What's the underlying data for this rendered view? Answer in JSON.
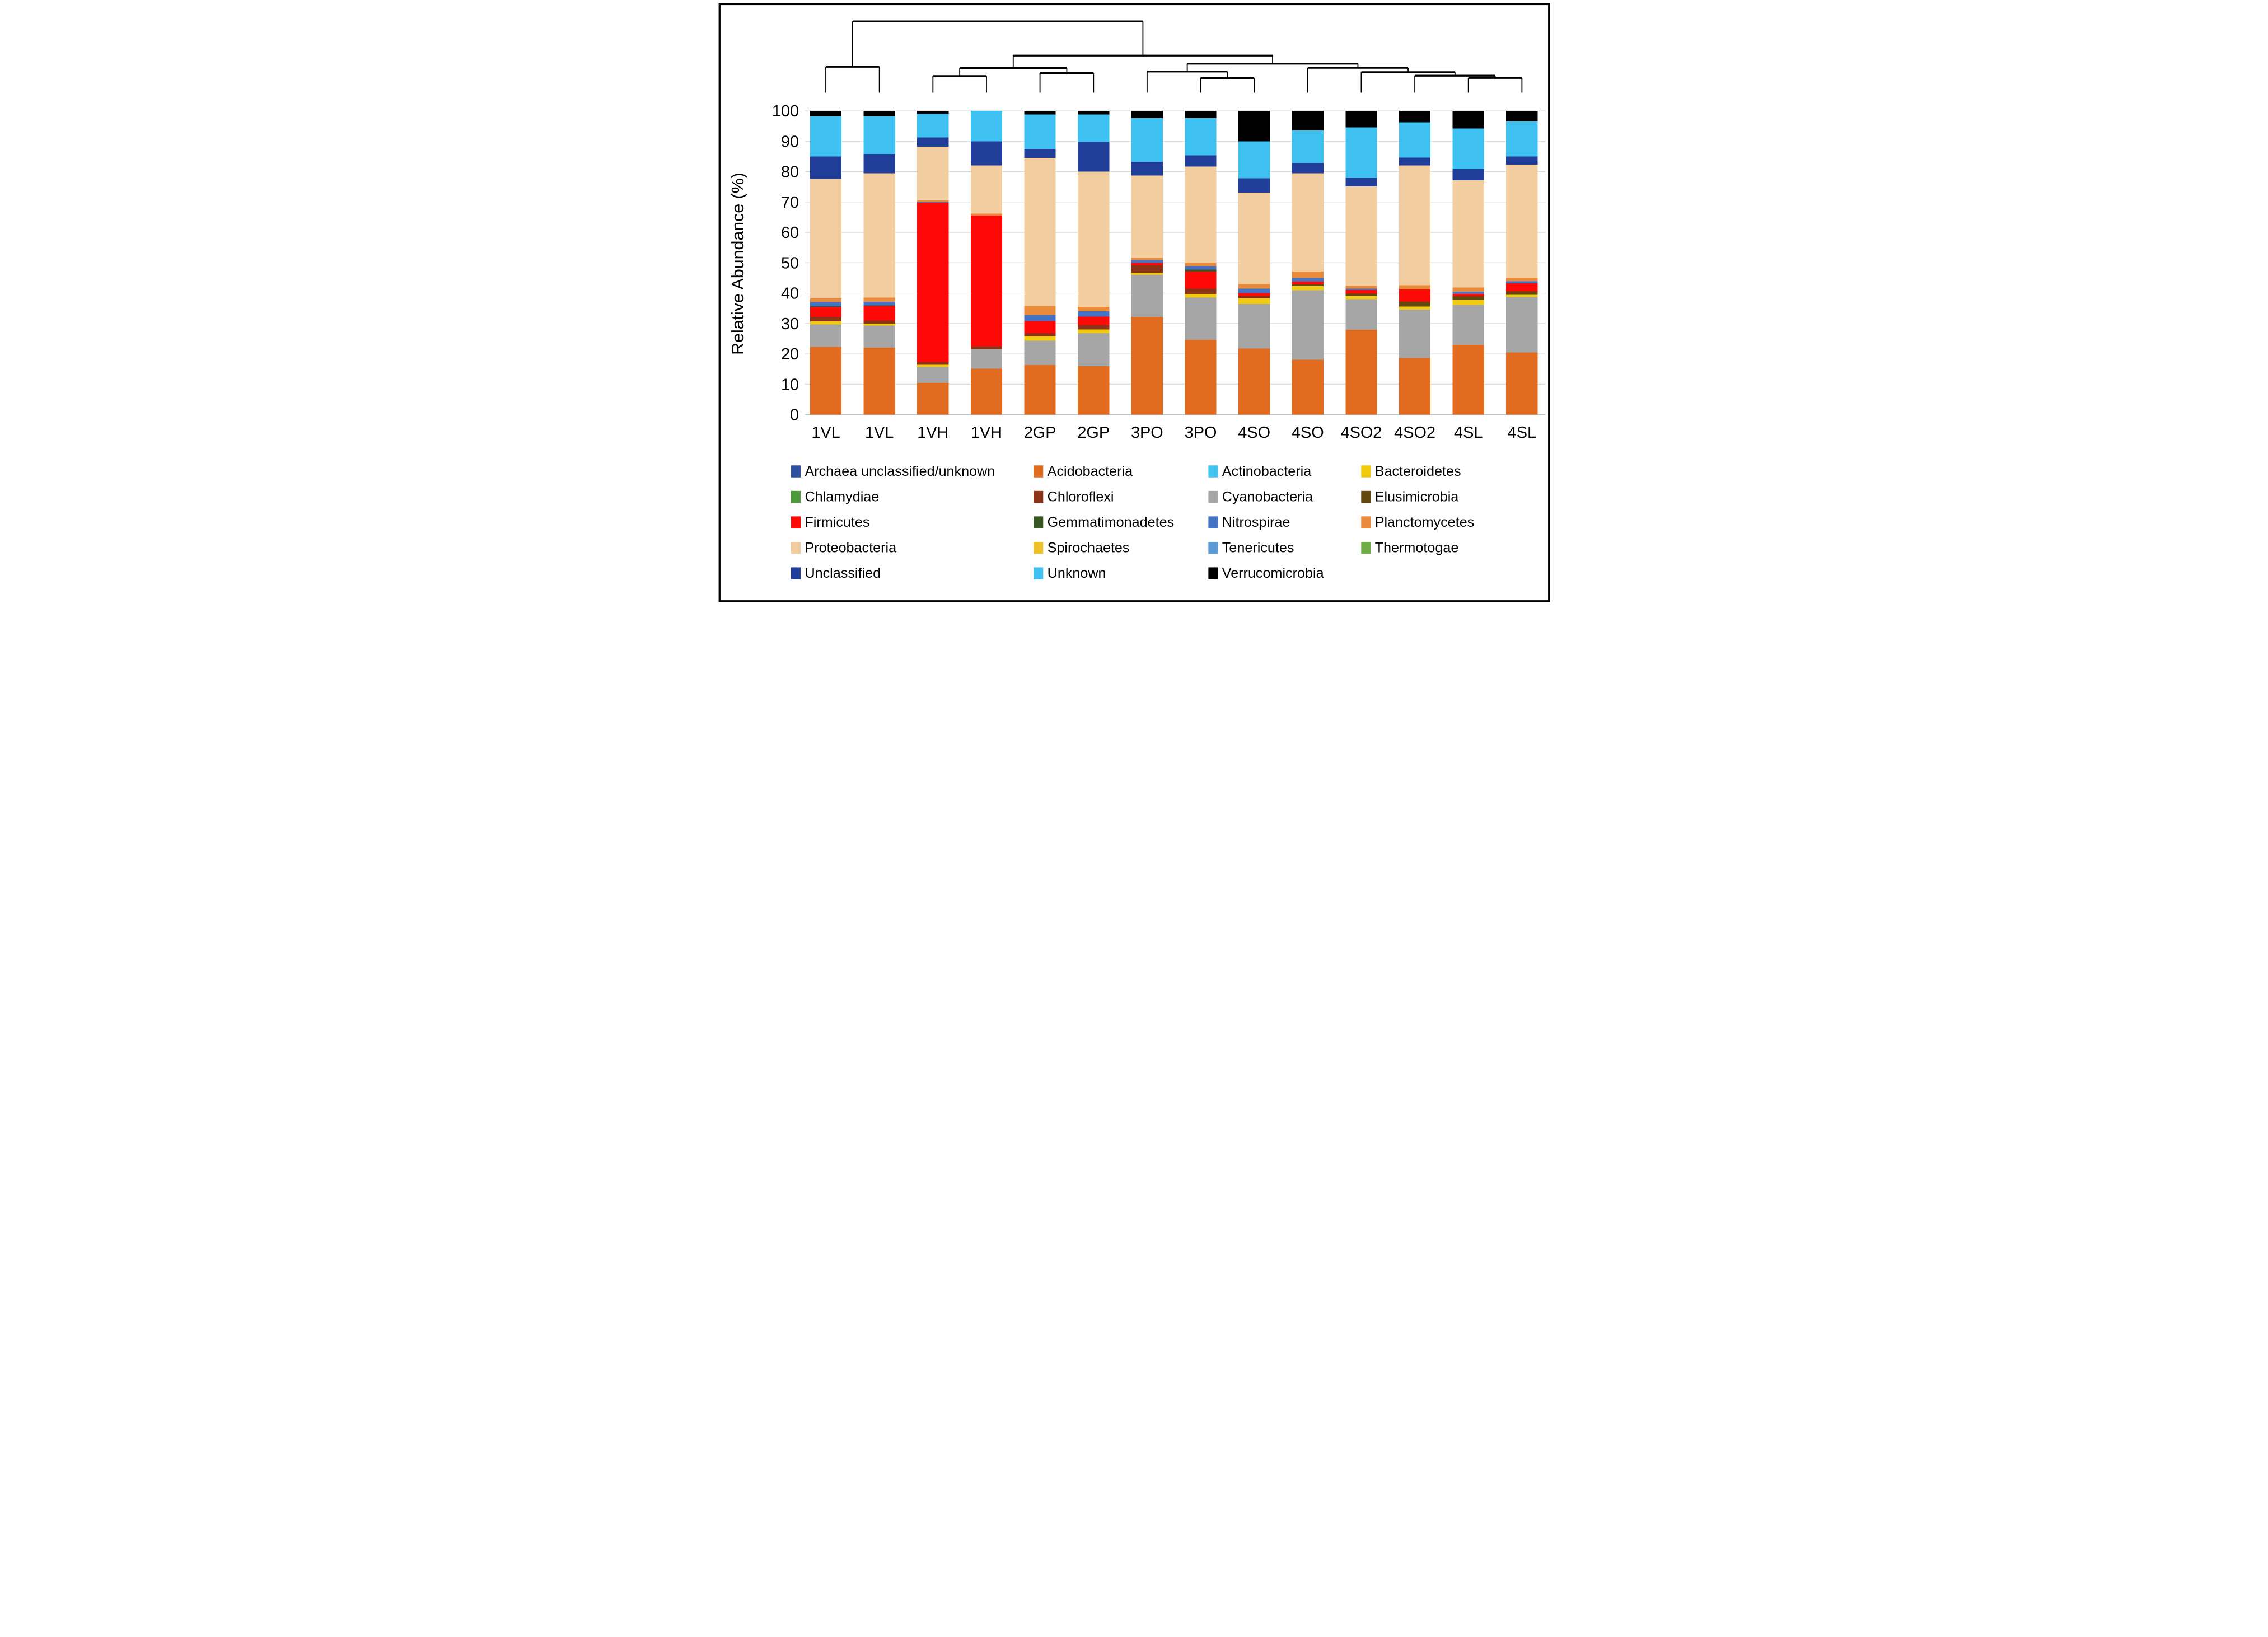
{
  "chart_data": {
    "type": "bar",
    "subtype": "stacked-percent-with-dendrogram",
    "title": "",
    "xlabel": "",
    "ylabel": "Relative Abundance (%)",
    "ylim": [
      0,
      100
    ],
    "grid": true,
    "legend_position": "bottom",
    "y_ticks": [
      0,
      10,
      20,
      30,
      40,
      50,
      60,
      70,
      80,
      90,
      100
    ],
    "categories": [
      "1VL",
      "1VL",
      "1VH",
      "1VH",
      "2GP",
      "2GP",
      "3PO",
      "3PO",
      "4SO",
      "4SO",
      "4SO2",
      "4SO2",
      "4SL",
      "4SL"
    ],
    "series": [
      {
        "name": "Archaea unclassified/unknown",
        "color": "#2E4E9E",
        "values": [
          0,
          0,
          0,
          0,
          0,
          0,
          0,
          0,
          0,
          0,
          0,
          0,
          0,
          0
        ]
      },
      {
        "name": "Acidobacteria",
        "color": "#E16C20",
        "values": [
          22.3,
          22.0,
          10.4,
          15.1,
          16.3,
          16.0,
          32.2,
          24.6,
          21.8,
          18.1,
          27.9,
          18.6,
          23.0,
          20.5
        ]
      },
      {
        "name": "Actinobacteria",
        "color": "#41C5F0",
        "values": [
          0,
          0,
          0,
          0,
          0,
          0,
          0,
          0,
          0,
          0,
          0,
          0,
          0,
          0
        ]
      },
      {
        "name": "Cyanobacteria",
        "color": "#A6A6A6",
        "values": [
          7.4,
          7.3,
          5.3,
          6.5,
          8.0,
          10.8,
          13.8,
          13.9,
          14.6,
          22.8,
          10.1,
          16.0,
          13.1,
          18.2
        ]
      },
      {
        "name": "Bacteroidetes",
        "color": "#F0CB0F",
        "values": [
          1.0,
          0.7,
          0.7,
          0,
          1.5,
          1.2,
          0.7,
          1.2,
          1.9,
          1.4,
          1.0,
          1.0,
          1.6,
          0.8
        ]
      },
      {
        "name": "Chlamydiae",
        "color": "#4C9A39",
        "values": [
          0,
          0,
          0,
          0,
          0,
          0,
          0,
          0,
          0,
          0,
          0,
          0,
          0,
          0
        ]
      },
      {
        "name": "Chloroflexi",
        "color": "#8C3216",
        "values": [
          1.5,
          1.0,
          0.9,
          0.9,
          1.0,
          1.5,
          2.4,
          1.8,
          0.8,
          0,
          0,
          0,
          0,
          0
        ]
      },
      {
        "name": "Elusimicrobia",
        "color": "#63490E",
        "values": [
          0,
          0,
          0,
          0,
          0,
          0,
          0,
          0,
          0,
          0.6,
          0.8,
          1.6,
          1.3,
          1.1
        ]
      },
      {
        "name": "Firmicutes",
        "color": "#FE0808",
        "values": [
          3.2,
          4.8,
          52.5,
          43.0,
          4.0,
          2.8,
          0.9,
          5.6,
          0.9,
          0.9,
          1.2,
          4.0,
          0.7,
          2.6
        ]
      },
      {
        "name": "Gemmatimonadetes",
        "color": "#375623",
        "values": [
          0.3,
          0.2,
          0,
          0,
          0,
          0,
          0,
          0.7,
          0,
          0,
          0,
          0,
          0,
          0
        ]
      },
      {
        "name": "Nitrospirae",
        "color": "#4472C4",
        "values": [
          1.4,
          1.2,
          0.3,
          0,
          2.0,
          1.7,
          0.9,
          1.1,
          1.5,
          1.2,
          0.5,
          0,
          0.8,
          0.7
        ]
      },
      {
        "name": "Planctomycetes",
        "color": "#E98B3A",
        "values": [
          1.2,
          1.3,
          0.4,
          0.7,
          3.0,
          1.5,
          0.7,
          1.1,
          1.5,
          2.1,
          0.9,
          1.4,
          1.4,
          1.2
        ]
      },
      {
        "name": "Proteobacteria",
        "color": "#F2CDA0",
        "values": [
          39.3,
          41.0,
          17.7,
          15.8,
          48.7,
          44.5,
          27.1,
          31.7,
          30.1,
          32.4,
          32.7,
          39.4,
          35.3,
          37.2
        ]
      },
      {
        "name": "Spirochaetes",
        "color": "#EDC02B",
        "values": [
          0,
          0,
          0,
          0,
          0,
          0,
          0,
          0,
          0,
          0,
          0,
          0,
          0,
          0
        ]
      },
      {
        "name": "Tenericutes",
        "color": "#5B9BD5",
        "values": [
          0,
          0,
          0,
          0,
          0,
          0,
          0,
          0,
          0,
          0,
          0,
          0,
          0,
          0
        ]
      },
      {
        "name": "Thermotogae",
        "color": "#70AD47",
        "values": [
          0,
          0,
          0,
          0,
          0,
          0,
          0,
          0,
          0,
          0,
          0,
          0,
          0,
          0
        ]
      },
      {
        "name": "Unclassified",
        "color": "#203D99",
        "values": [
          7.4,
          6.3,
          3.1,
          8.0,
          3.0,
          9.8,
          4.5,
          3.7,
          4.7,
          3.4,
          2.8,
          2.6,
          3.6,
          2.7
        ]
      },
      {
        "name": "Unknown",
        "color": "#3EC1F0",
        "values": [
          13.2,
          12.4,
          7.8,
          10.0,
          11.3,
          9.0,
          14.4,
          12.2,
          12.2,
          10.7,
          16.7,
          11.6,
          13.4,
          11.5
        ]
      },
      {
        "name": "Verrucomicrobia",
        "color": "#000000",
        "values": [
          1.8,
          1.8,
          0.9,
          0,
          1.2,
          1.2,
          2.4,
          2.4,
          10.0,
          6.4,
          5.4,
          3.8,
          5.8,
          3.5
        ]
      }
    ],
    "dendrogram": {
      "note": "heights are vertical positions in figure pixel space (smaller = higher merge); leaves are category indices",
      "leaf_stub_bottom": 447,
      "merges": [
        {
          "id": "m0",
          "a": 0,
          "b": 1,
          "y": 322
        },
        {
          "id": "m1",
          "a": 2,
          "b": 3,
          "y": 367
        },
        {
          "id": "m2",
          "a": 4,
          "b": 5,
          "y": 353
        },
        {
          "id": "m3",
          "a": "m1",
          "b": "m2",
          "y": 328
        },
        {
          "id": "m4",
          "a": 7,
          "b": 8,
          "y": 377
        },
        {
          "id": "m5",
          "a": 6,
          "b": "m4",
          "y": 345
        },
        {
          "id": "m6",
          "a": 12,
          "b": 13,
          "y": 376
        },
        {
          "id": "m7",
          "a": 11,
          "b": "m6",
          "y": 365
        },
        {
          "id": "m8",
          "a": 10,
          "b": "m7",
          "y": 348
        },
        {
          "id": "m9",
          "a": 9,
          "b": "m8",
          "y": 327
        },
        {
          "id": "m10",
          "a": "m5",
          "b": "m9",
          "y": 307
        },
        {
          "id": "m11",
          "a": "m3",
          "b": "m10",
          "y": 268
        },
        {
          "id": "m12",
          "a": "m0",
          "b": "m11",
          "y": 103
        }
      ]
    }
  },
  "legend": {
    "items": [
      {
        "label": "Archaea unclassified/unknown"
      },
      {
        "label": "Acidobacteria"
      },
      {
        "label": "Actinobacteria"
      },
      {
        "label": "Bacteroidetes"
      },
      {
        "label": "Chlamydiae"
      },
      {
        "label": "Chloroflexi"
      },
      {
        "label": "Cyanobacteria"
      },
      {
        "label": "Elusimicrobia"
      },
      {
        "label": "Firmicutes"
      },
      {
        "label": "Gemmatimonadetes"
      },
      {
        "label": "Nitrospirae"
      },
      {
        "label": "Planctomycetes"
      },
      {
        "label": "Proteobacteria"
      },
      {
        "label": "Spirochaetes"
      },
      {
        "label": "Tenericutes"
      },
      {
        "label": "Thermotogae"
      },
      {
        "label": "Unclassified"
      },
      {
        "label": "Unknown"
      },
      {
        "label": "Verrucomicrobia"
      }
    ]
  }
}
